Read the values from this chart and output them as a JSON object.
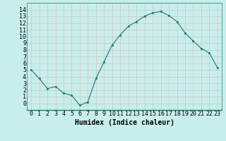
{
  "x": [
    0,
    1,
    2,
    3,
    4,
    5,
    6,
    7,
    8,
    9,
    10,
    11,
    12,
    13,
    14,
    15,
    16,
    17,
    18,
    19,
    20,
    21,
    22,
    23
  ],
  "y": [
    5.0,
    3.7,
    2.2,
    2.5,
    1.5,
    1.2,
    -0.3,
    0.2,
    3.7,
    6.2,
    8.7,
    10.2,
    11.5,
    12.2,
    13.0,
    13.5,
    13.7,
    13.1,
    12.2,
    10.5,
    9.3,
    8.2,
    7.5,
    5.3
  ],
  "xlabel": "Humidex (Indice chaleur)",
  "xlim": [
    -0.5,
    23.5
  ],
  "ylim": [
    -1,
    15
  ],
  "yticks": [
    0,
    1,
    2,
    3,
    4,
    5,
    6,
    7,
    8,
    9,
    10,
    11,
    12,
    13,
    14
  ],
  "xticks": [
    0,
    1,
    2,
    3,
    4,
    5,
    6,
    7,
    8,
    9,
    10,
    11,
    12,
    13,
    14,
    15,
    16,
    17,
    18,
    19,
    20,
    21,
    22,
    23
  ],
  "line_color": "#1a7a6e",
  "marker_color": "#1a7a6e",
  "bg_color": "#c8eeeb",
  "grid_color": "#d8b8b8",
  "xlabel_fontsize": 7,
  "tick_fontsize": 6,
  "figsize": [
    3.2,
    2.0
  ],
  "dpi": 100
}
